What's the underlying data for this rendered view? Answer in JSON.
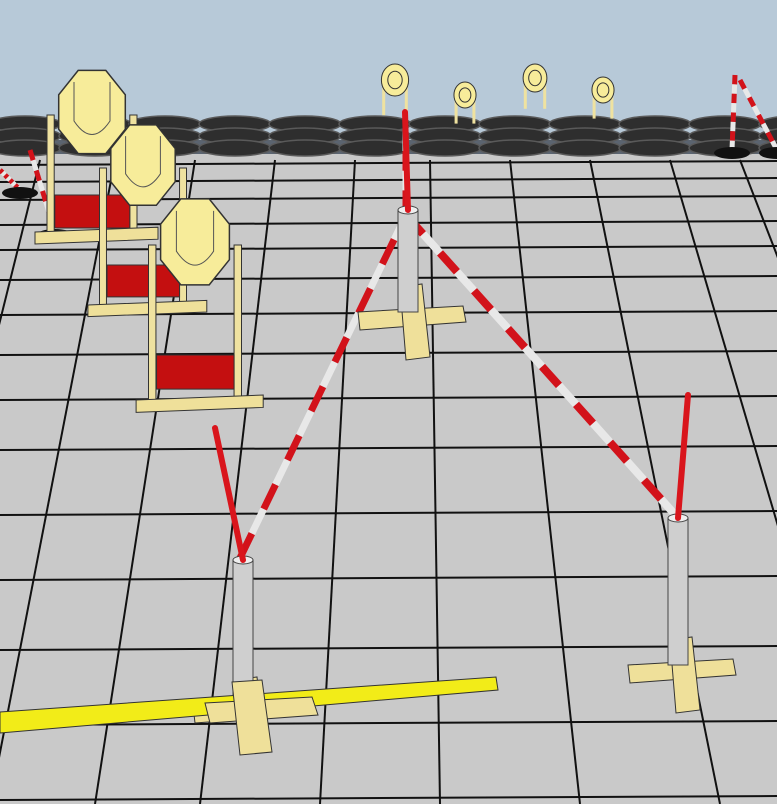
{
  "scene": {
    "colors": {
      "sky": "#b7c9d8",
      "floor": "#c9c9c9",
      "grid_line": "#111111",
      "tire": "#2e2e2e",
      "tire_highlight": "#5a5a5a",
      "barrier_wall": "#5b6470",
      "target_face": "#f7ec9a",
      "target_stand": "#efe2a0",
      "plate_red": "#c40f10",
      "tape_red": "#d2121a",
      "tape_white": "#e8e8e8",
      "pole": "#cfcfcf",
      "pole_red": "#d9151c",
      "base_wood": "#efe09a",
      "start_line": "#f2ec18"
    },
    "objects": [
      "tire-wall",
      "steel-targets",
      "barrier-tape",
      "marker-poles",
      "start-line"
    ]
  }
}
